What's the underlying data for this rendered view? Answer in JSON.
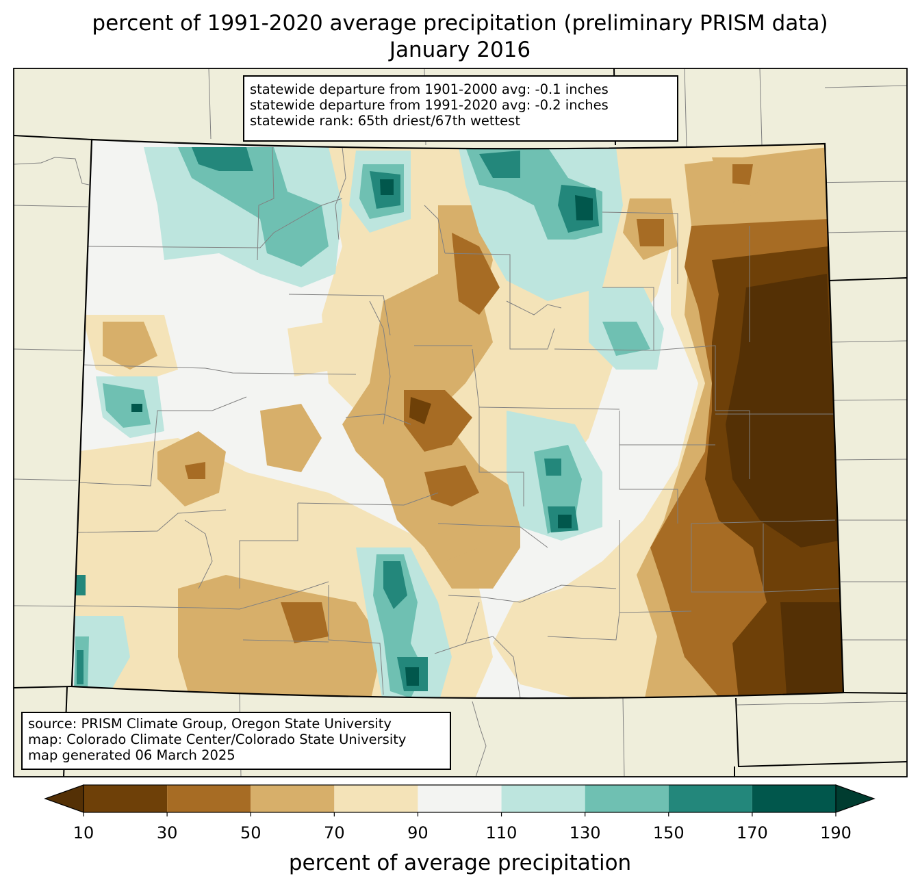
{
  "title": {
    "line1": "percent of 1991-2020 average precipitation (preliminary PRISM data)",
    "line2": "January 2016"
  },
  "stats": {
    "line1": "statewide departure from 1901-2000 avg: -0.1 inches",
    "line2": "statewide departure from 1991-2020 avg: -0.2 inches",
    "line3": "statewide rank: 65th driest/67th wettest"
  },
  "credits": {
    "line1": "source: PRISM Climate Group, Oregon State University",
    "line2": "map: Colorado Climate Center/Colorado State University",
    "line3": "map generated 06 March 2025"
  },
  "colorbar": {
    "label": "percent of average precipitation",
    "ticks": [
      "10",
      "30",
      "50",
      "70",
      "90",
      "110",
      "130",
      "150",
      "170",
      "190"
    ],
    "under_color": "#543005",
    "over_color": "#003c30",
    "bins": [
      {
        "from": 10,
        "to": 30,
        "color": "#6e4008"
      },
      {
        "from": 30,
        "to": 50,
        "color": "#a76c24"
      },
      {
        "from": 50,
        "to": 70,
        "color": "#d7af6a"
      },
      {
        "from": 70,
        "to": 90,
        "color": "#f4e3b8"
      },
      {
        "from": 90,
        "to": 110,
        "color": "#f3f4f2"
      },
      {
        "from": 110,
        "to": 130,
        "color": "#bde5de"
      },
      {
        "from": 130,
        "to": 150,
        "color": "#6fc0b2"
      },
      {
        "from": 150,
        "to": 170,
        "color": "#23877b"
      },
      {
        "from": 170,
        "to": 190,
        "color": "#01574c"
      }
    ]
  },
  "map_colors": {
    "background": "#efeedb",
    "state_fill": "#f3f4f2",
    "county_lines": "#808080",
    "state_lines": "#000000"
  }
}
